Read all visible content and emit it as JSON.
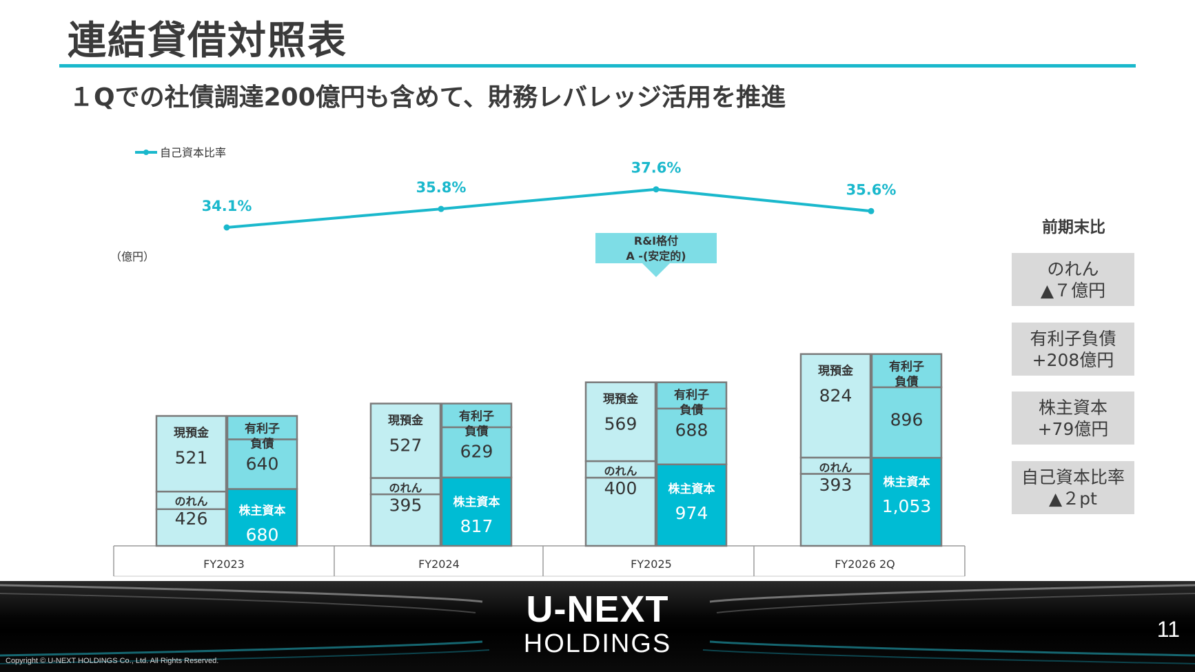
{
  "slide": {
    "title": "連結貸借対照表",
    "subtitle": "１Qでの社債調達200億円も含めて、財務レバレッジ活用を推進",
    "page_number": "11",
    "copyright": "Copyright © U-NEXT HOLDINGS Co., Ltd. All Rights Reserved.",
    "logo_line1": "U-NEXT",
    "logo_line2": "HOLDINGS"
  },
  "side_panel": {
    "heading": "前期末比",
    "items": [
      {
        "line1": "のれん",
        "line2": "▲７億円"
      },
      {
        "line1": "有利子負債",
        "line2": "+208億円"
      },
      {
        "line1": "株主資本",
        "line2": "+79億円"
      },
      {
        "line1": "自己資本比率",
        "line2": "▲２pt"
      }
    ]
  },
  "colors": {
    "accent": "#1ab8cc",
    "light_segment": "#c2eef2",
    "mid_segment": "#7edde6",
    "equity_segment": "#00bcd4",
    "bar_outline": "#7a7a7a",
    "comparison_box": "#d9d9d9"
  },
  "chart_data": {
    "type": "bar",
    "stacked": true,
    "unit_label": "（億円）",
    "categories": [
      "FY2023",
      "FY2024",
      "FY2025",
      "FY2026 2Q"
    ],
    "segment_labels": {
      "cash": "現預金",
      "goodwill": "のれん",
      "debt": "有利子負債",
      "equity": "株主資本"
    },
    "assets": {
      "cash": [
        521,
        527,
        569,
        824
      ],
      "goodwill": [
        426,
        395,
        400,
        393
      ]
    },
    "liabilities": {
      "debt": [
        640,
        629,
        688,
        896
      ],
      "equity": [
        680,
        817,
        974,
        1053
      ]
    },
    "value_labels": {
      "cash": [
        "521",
        "527",
        "569",
        "824"
      ],
      "goodwill": [
        "426",
        "395",
        "400",
        "393"
      ],
      "debt": [
        "640",
        "629",
        "688",
        "896"
      ],
      "equity": [
        "680",
        "817",
        "974",
        "1,053"
      ]
    },
    "equity_ratio": {
      "name": "自己資本比率",
      "values": [
        34.1,
        35.8,
        37.6,
        35.6
      ],
      "labels": [
        "34.1%",
        "35.8%",
        "37.6%",
        "35.6%"
      ]
    },
    "annotation": {
      "category": "FY2025",
      "line1": "R&I格付",
      "line2": "A -(安定的)"
    },
    "legend": {
      "label": "自己資本比率",
      "position": "top-left"
    }
  }
}
